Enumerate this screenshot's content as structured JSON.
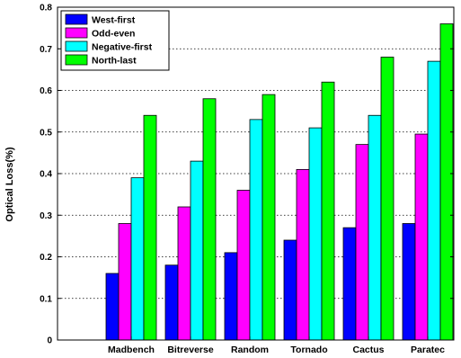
{
  "chart_data": {
    "type": "bar",
    "title": "",
    "xlabel": "",
    "ylabel": "Optical Loss(%)",
    "ylim": [
      0,
      0.8
    ],
    "yticks": [
      "0",
      "0.1",
      "0.2",
      "0.3",
      "0.4",
      "0.5",
      "0.6",
      "0.7",
      "0.8"
    ],
    "grid": "horizontal dotted",
    "legend_position": "top-left",
    "categories": [
      "Madbench",
      "Bitreverse",
      "Random",
      "Tornado",
      "Cactus",
      "Paratec"
    ],
    "series": [
      {
        "name": "West-first",
        "color": "#0000ff",
        "values": [
          0.16,
          0.18,
          0.21,
          0.24,
          0.27,
          0.28
        ]
      },
      {
        "name": "Odd-even",
        "color": "#ff00ff",
        "values": [
          0.28,
          0.32,
          0.36,
          0.41,
          0.47,
          0.495
        ]
      },
      {
        "name": "Negative-first",
        "color": "#00ffff",
        "values": [
          0.39,
          0.43,
          0.53,
          0.51,
          0.54,
          0.67
        ]
      },
      {
        "name": "North-last",
        "color": "#00ff00",
        "values": [
          0.54,
          0.58,
          0.59,
          0.62,
          0.68,
          0.76
        ]
      }
    ]
  }
}
